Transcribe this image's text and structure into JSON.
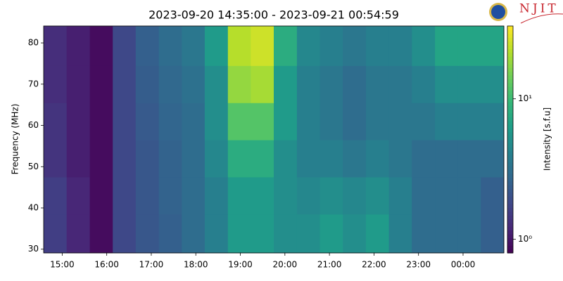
{
  "chart_data": {
    "type": "heatmap",
    "title": "2023-09-20 14:35:00 - 2023-09-21 00:54:59",
    "ylabel": "Frequency (MHz)",
    "colorbar_label": "Intensity [s.f.u]",
    "colormap": "viridis",
    "xlim": [
      14.5833,
      24.9166
    ],
    "xticks": [
      {
        "value": 15,
        "label": "15:00"
      },
      {
        "value": 16,
        "label": "16:00"
      },
      {
        "value": 17,
        "label": "17:00"
      },
      {
        "value": 18,
        "label": "18:00"
      },
      {
        "value": 19,
        "label": "19:00"
      },
      {
        "value": 20,
        "label": "20:00"
      },
      {
        "value": 21,
        "label": "21:00"
      },
      {
        "value": 22,
        "label": "22:00"
      },
      {
        "value": 23,
        "label": "23:00"
      },
      {
        "value": 24,
        "label": "00:00"
      }
    ],
    "ylim": [
      29.1,
      84.1
    ],
    "yticks": [
      30,
      40,
      50,
      60,
      70,
      80
    ],
    "clim": [
      0.8,
      33
    ],
    "clog": true,
    "cticks": [
      {
        "value": 1,
        "label": "10⁰"
      },
      {
        "value": 10,
        "label": "10¹"
      }
    ],
    "x": [
      14.84,
      15.36,
      15.88,
      16.39,
      16.91,
      17.43,
      17.94,
      18.46,
      18.98,
      19.49,
      20.01,
      20.53,
      21.04,
      21.56,
      22.08,
      22.59,
      23.11,
      23.63,
      24.14,
      24.66
    ],
    "y": [
      34,
      43,
      52,
      61,
      70,
      79
    ],
    "z": [
      [
        1.6,
        1.2,
        0.9,
        1.8,
        2.2,
        2.5,
        3,
        4,
        6,
        6,
        5,
        5,
        6,
        5,
        6,
        4,
        3,
        3,
        3,
        2.5
      ],
      [
        1.6,
        1.2,
        0.9,
        1.8,
        2.2,
        2.6,
        3,
        4,
        6,
        6,
        5,
        4.5,
        5,
        4.5,
        5,
        4,
        3,
        3,
        3,
        2.5
      ],
      [
        1.4,
        1.1,
        0.9,
        1.8,
        2.2,
        2.6,
        3,
        4.5,
        8,
        8,
        5,
        4,
        4,
        3.5,
        4,
        3.5,
        3,
        3,
        3,
        3
      ],
      [
        1.4,
        1.1,
        0.9,
        1.8,
        2.3,
        2.7,
        3,
        5,
        12,
        12,
        6,
        4,
        3.5,
        3,
        3.5,
        3.5,
        3.5,
        4,
        4,
        4
      ],
      [
        1.3,
        1.1,
        0.9,
        1.8,
        2.4,
        2.8,
        3.2,
        5,
        18,
        20,
        6,
        4,
        3.5,
        3,
        3.5,
        3.5,
        4,
        5,
        5,
        5
      ],
      [
        1.3,
        1.1,
        0.9,
        1.8,
        2.5,
        3,
        3.5,
        6,
        22,
        25,
        8,
        4.5,
        4,
        3.5,
        4,
        4,
        5,
        7,
        7,
        7
      ]
    ]
  },
  "logo_text": "NJIT"
}
